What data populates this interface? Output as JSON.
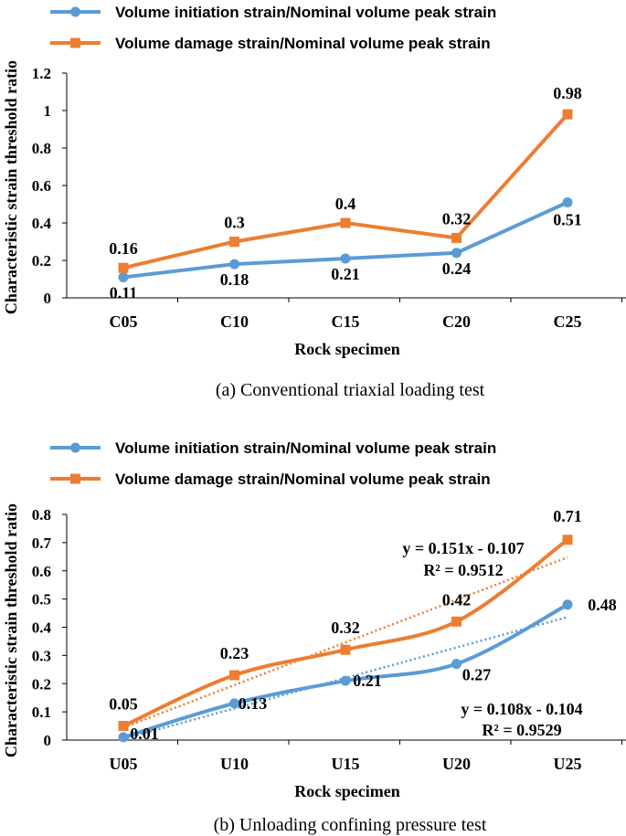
{
  "colors": {
    "blue": "#5b9bd5",
    "orange": "#ed7d31",
    "axis": "#000000"
  },
  "chart_data": [
    {
      "type": "line",
      "caption": "(a) Conventional triaxial loading test",
      "xlabel": "Rock specimen",
      "ylabel": "Characteristic strain threshold ratio",
      "categories": [
        "C05",
        "C10",
        "C15",
        "C20",
        "C25"
      ],
      "ylim": [
        0,
        1.2
      ],
      "yticks": [
        "0",
        "0.2",
        "0.4",
        "0.6",
        "0.8",
        "1",
        "1.2"
      ],
      "series": [
        {
          "name": "Volume initiation strain/Nominal volume peak strain",
          "values": [
            0.11,
            0.18,
            0.21,
            0.24,
            0.51
          ],
          "labels": [
            "0.11",
            "0.18",
            "0.21",
            "0.24",
            "0.51"
          ],
          "marker": "circle"
        },
        {
          "name": "Volume damage strain/Nominal volume peak strain",
          "values": [
            0.16,
            0.3,
            0.4,
            0.32,
            0.98
          ],
          "labels": [
            "0.16",
            "0.3",
            "0.4",
            "0.32",
            "0.98"
          ],
          "marker": "square"
        }
      ]
    },
    {
      "type": "line",
      "caption": "(b) Unloading confining pressure test",
      "xlabel": "Rock specimen",
      "ylabel": "Characteristic strain threshold ratio",
      "categories": [
        "U05",
        "U10",
        "U15",
        "U20",
        "U25"
      ],
      "ylim": [
        0,
        0.8
      ],
      "yticks": [
        "0",
        "0.1",
        "0.2",
        "0.3",
        "0.4",
        "0.5",
        "0.6",
        "0.7",
        "0.8"
      ],
      "series": [
        {
          "name": "Volume initiation strain/Nominal volume peak strain",
          "values": [
            0.01,
            0.13,
            0.21,
            0.27,
            0.48
          ],
          "labels": [
            "0.01",
            "0.13",
            "0.21",
            "0.27",
            "0.48"
          ],
          "marker": "circle",
          "smooth": true
        },
        {
          "name": "Volume damage strain/Nominal volume peak strain",
          "values": [
            0.05,
            0.23,
            0.32,
            0.42,
            0.71
          ],
          "labels": [
            "0.05",
            "0.23",
            "0.32",
            "0.42",
            "0.71"
          ],
          "marker": "square",
          "smooth": true
        }
      ],
      "trendlines": [
        {
          "series": 0,
          "slope": 0.108,
          "intercept": -0.104,
          "equation": "y = 0.108x - 0.104",
          "r2": "R² = 0.9529"
        },
        {
          "series": 1,
          "slope": 0.151,
          "intercept": -0.107,
          "equation": "y = 0.151x - 0.107",
          "r2": "R² = 0.9512"
        }
      ]
    }
  ]
}
